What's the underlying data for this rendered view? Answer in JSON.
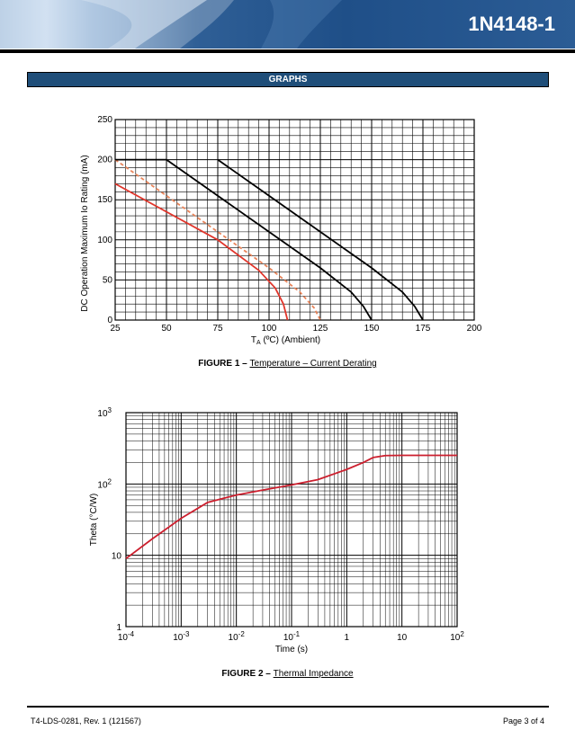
{
  "header": {
    "part_number": "1N4148-1"
  },
  "section": {
    "title": "GRAPHS"
  },
  "chart_data": [
    {
      "type": "line",
      "xlabel": "TA (ºC) (Ambient)",
      "xlabel_main": "T",
      "xlabel_sub": "A",
      "xlabel_rest": " (ºC) (Ambient)",
      "ylabel": "DC Operation Maximum Io Rating (mA)",
      "xlim": [
        25,
        200
      ],
      "ylim": [
        0,
        250
      ],
      "x_ticks": [
        "25",
        "50",
        "75",
        "100",
        "125",
        "150",
        "175",
        "200"
      ],
      "y_ticks": [
        "0",
        "50",
        "100",
        "150",
        "200",
        "250"
      ],
      "grid": true,
      "series": [
        {
          "color": "#e0352b",
          "dashed": false,
          "x": [
            25,
            75,
            95,
            103,
            107,
            109
          ],
          "y": [
            170,
            100,
            62,
            40,
            20,
            0
          ]
        },
        {
          "color": "#e8845a",
          "dashed": true,
          "x": [
            25,
            50,
            75,
            100,
            115,
            122,
            125
          ],
          "y": [
            200,
            155,
            110,
            65,
            35,
            15,
            0
          ]
        },
        {
          "color": "#000000",
          "dashed": false,
          "x": [
            25,
            50,
            75,
            100,
            125,
            140,
            146,
            150
          ],
          "y": [
            200,
            200,
            155,
            110,
            65,
            35,
            17,
            0
          ]
        },
        {
          "color": "#000000",
          "dashed": false,
          "x": [
            75,
            100,
            125,
            150,
            165,
            171,
            175
          ],
          "y": [
            200,
            155,
            110,
            65,
            35,
            17,
            0
          ]
        }
      ],
      "caption_fig": "FIGURE 1 – ",
      "caption_text": "Temperature – Current Derating"
    },
    {
      "type": "line",
      "xlabel": "Time (s)",
      "ylabel": "Theta (°C/W)",
      "xscale": "log",
      "yscale": "log",
      "xlim": [
        0.0001,
        100
      ],
      "ylim": [
        1,
        1000
      ],
      "x_ticks": [
        {
          "base": "10",
          "exp": "-4"
        },
        {
          "base": "10",
          "exp": "-3"
        },
        {
          "base": "10",
          "exp": "-2"
        },
        {
          "base": "10",
          "exp": "-1"
        },
        {
          "base": "1",
          "exp": ""
        },
        {
          "base": "10",
          "exp": ""
        },
        {
          "base": "10",
          "exp": "2"
        }
      ],
      "y_ticks": [
        {
          "base": "1",
          "exp": ""
        },
        {
          "base": "10",
          "exp": ""
        },
        {
          "base": "10",
          "exp": "2"
        },
        {
          "base": "10",
          "exp": "3"
        }
      ],
      "grid": true,
      "series": [
        {
          "color": "#cc1f2e",
          "dashed": false,
          "x": [
            0.0001,
            0.0003,
            0.001,
            0.003,
            0.01,
            0.03,
            0.1,
            0.3,
            1,
            2,
            3,
            5,
            10,
            30,
            100
          ],
          "y": [
            9,
            17,
            33,
            55,
            70,
            82,
            97,
            115,
            160,
            200,
            235,
            250,
            252,
            252,
            252
          ]
        }
      ],
      "caption_fig": "FIGURE 2 – ",
      "caption_text": "Thermal Impedance"
    }
  ],
  "footer": {
    "doc_id": "T4-LDS-0281, Rev. 1 (121567)",
    "page": "Page 3 of 4"
  }
}
